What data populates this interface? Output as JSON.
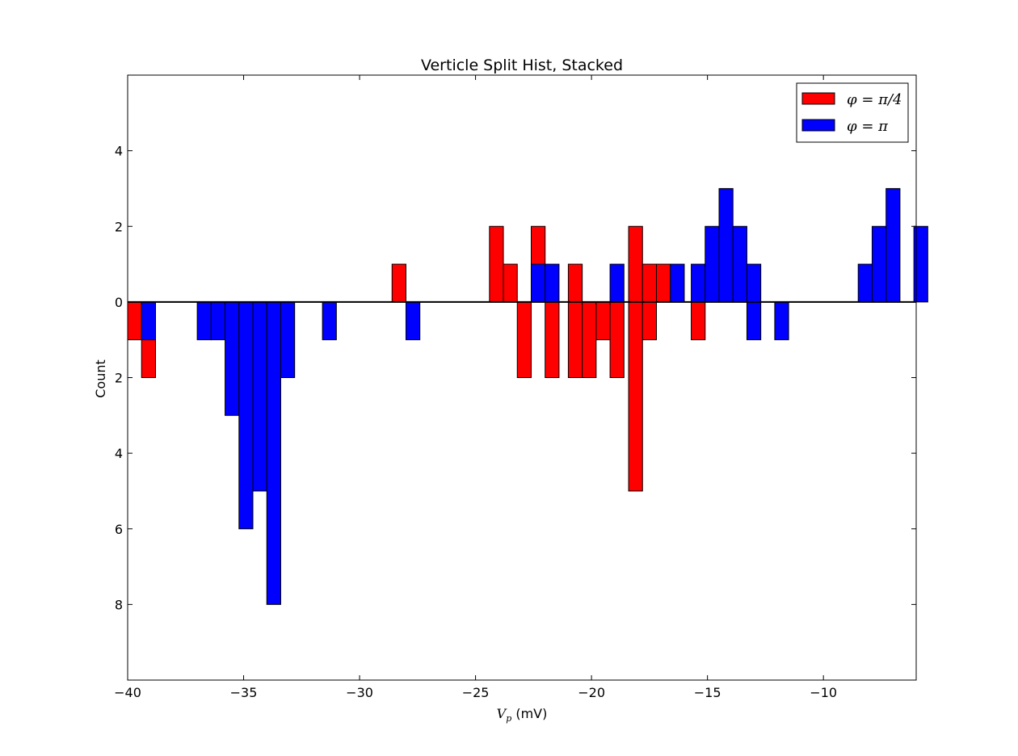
{
  "chart_data": {
    "type": "bar",
    "title": "Verticle Split Hist, Stacked",
    "xlabel_symbol": "V",
    "xlabel_subscript": "p",
    "xlabel_unit": " (mV)",
    "ylabel": "Count",
    "xlim": [
      -40,
      -6.0
    ],
    "ylim": [
      -10,
      6
    ],
    "bin_width": 0.6,
    "x_ticks": [
      -40,
      -35,
      -30,
      -25,
      -20,
      -15,
      -10
    ],
    "x_tick_labels": [
      "−40",
      "−35",
      "−30",
      "−25",
      "−20",
      "−15",
      "−10"
    ],
    "y_ticks": [
      4,
      2,
      0,
      -2,
      -4,
      -6,
      -8
    ],
    "y_tick_labels": [
      "4",
      "2",
      "0",
      "2",
      "4",
      "6",
      "8"
    ],
    "legend_position": "top-right",
    "series": [
      {
        "name": "φ = π/4",
        "color": "#ff0000",
        "up": [
          {
            "x": -28.6,
            "count": 1
          },
          {
            "x": -24.4,
            "count": 2
          },
          {
            "x": -23.8,
            "count": 1
          },
          {
            "x": -22.6,
            "count": 2
          },
          {
            "x": -21.0,
            "count": 1
          },
          {
            "x": -18.4,
            "count": 2
          },
          {
            "x": -17.8,
            "count": 1
          },
          {
            "x": -17.2,
            "count": 1
          }
        ],
        "down": [
          {
            "x": -40.0,
            "count": 1
          },
          {
            "x": -39.4,
            "count": 2
          },
          {
            "x": -23.2,
            "count": 2
          },
          {
            "x": -22.0,
            "count": 2
          },
          {
            "x": -21.0,
            "count": 2
          },
          {
            "x": -20.4,
            "count": 2
          },
          {
            "x": -19.8,
            "count": 1
          },
          {
            "x": -19.2,
            "count": 2
          },
          {
            "x": -18.4,
            "count": 5
          },
          {
            "x": -17.8,
            "count": 1
          },
          {
            "x": -15.7,
            "count": 1
          }
        ]
      },
      {
        "name": "φ = π",
        "color": "#0000ff",
        "up": [
          {
            "x": -22.6,
            "count": 1
          },
          {
            "x": -22.0,
            "count": 1
          },
          {
            "x": -19.2,
            "count": 1
          },
          {
            "x": -16.6,
            "count": 1
          },
          {
            "x": -15.7,
            "count": 1
          },
          {
            "x": -15.1,
            "count": 2
          },
          {
            "x": -14.5,
            "count": 3
          },
          {
            "x": -13.9,
            "count": 2
          },
          {
            "x": -13.3,
            "count": 1
          },
          {
            "x": -8.5,
            "count": 1
          },
          {
            "x": -7.9,
            "count": 2
          },
          {
            "x": -7.3,
            "count": 3
          },
          {
            "x": -6.1,
            "count": 2
          }
        ],
        "down": [
          {
            "x": -39.4,
            "count": 1
          },
          {
            "x": -37.0,
            "count": 1
          },
          {
            "x": -36.4,
            "count": 1
          },
          {
            "x": -35.8,
            "count": 3
          },
          {
            "x": -35.2,
            "count": 6
          },
          {
            "x": -34.6,
            "count": 5
          },
          {
            "x": -34.0,
            "count": 8
          },
          {
            "x": -33.4,
            "count": 2
          },
          {
            "x": -31.6,
            "count": 1
          },
          {
            "x": -28.0,
            "count": 1
          },
          {
            "x": -13.3,
            "count": 1
          },
          {
            "x": -12.1,
            "count": 1
          }
        ]
      }
    ]
  },
  "legend": {
    "items": [
      {
        "label": "φ = π/4",
        "color": "#ff0000"
      },
      {
        "label": "φ = π",
        "color": "#0000ff"
      }
    ]
  }
}
